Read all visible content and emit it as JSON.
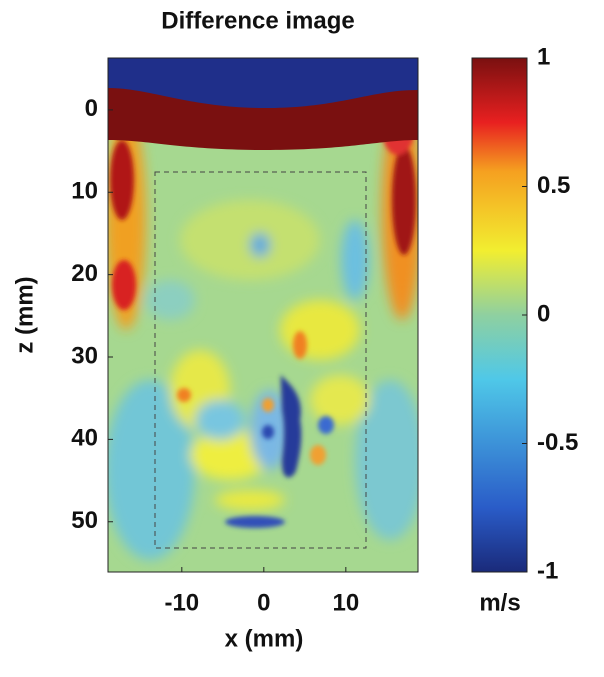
{
  "chart_data": {
    "type": "heatmap",
    "title": "Difference image",
    "xlabel": "x (mm)",
    "ylabel": "z (mm)",
    "xlim": [
      -19,
      18.8
    ],
    "xticks": [
      -10,
      0,
      10
    ],
    "ylim": [
      -6.3,
      56.1
    ],
    "yticks": [
      0,
      10,
      20,
      30,
      40,
      50
    ],
    "y_reversed": true,
    "colorbar": {
      "clim": [
        -1,
        1
      ],
      "ticks": [
        -1,
        -0.5,
        0,
        0.5,
        1
      ],
      "label": "m/s",
      "colormap": "jet"
    }
  }
}
